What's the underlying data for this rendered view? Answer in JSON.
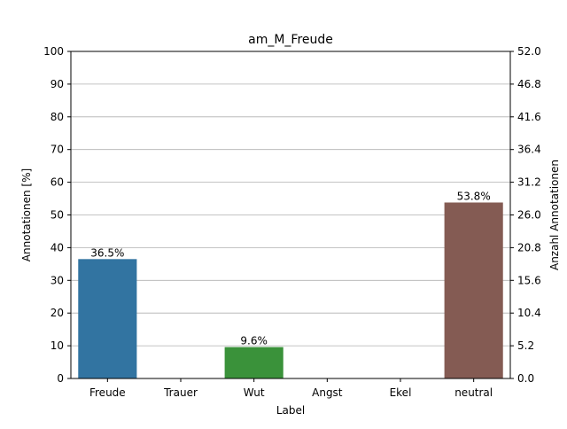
{
  "chart_data": {
    "type": "bar",
    "title": "am_M_Freude",
    "xlabel": "Label",
    "ylabel": "Annotationen [%]",
    "ylabel_right": "Anzahl Annotationen",
    "categories": [
      "Freude",
      "Trauer",
      "Wut",
      "Angst",
      "Ekel",
      "neutral"
    ],
    "values": [
      36.5,
      0,
      9.6,
      0,
      0,
      53.8
    ],
    "data_labels": [
      "36.5%",
      "",
      "9.6%",
      "",
      "",
      "53.8%"
    ],
    "colors": [
      "#3274a1",
      "#e1812c",
      "#3a923a",
      "#c03d3e",
      "#9372b2",
      "#845b53"
    ],
    "ylim": [
      0,
      100
    ],
    "yticks": [
      "0",
      "10",
      "20",
      "30",
      "40",
      "50",
      "60",
      "70",
      "80",
      "90",
      "100"
    ],
    "ylim_right": [
      0,
      52
    ],
    "yticks_right": [
      "0.0",
      "5.2",
      "10.4",
      "15.6",
      "20.8",
      "26.0",
      "31.2",
      "36.4",
      "41.6",
      "46.8",
      "52.0"
    ],
    "grid": true
  }
}
